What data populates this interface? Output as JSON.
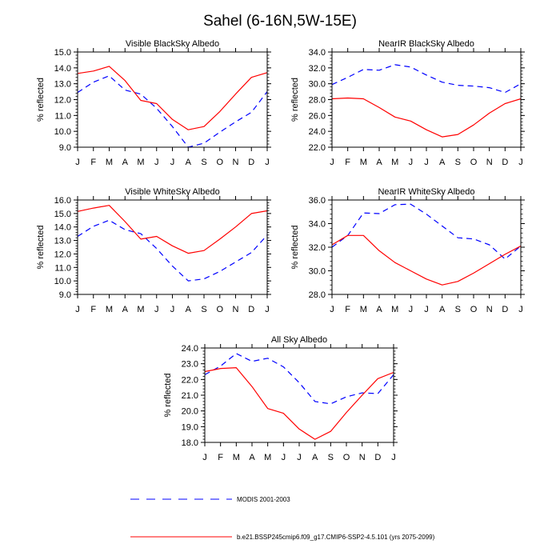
{
  "figure": {
    "title": "Sahel (6-16N,5W-15E)",
    "legend": [
      {
        "label": "MODIS 2001-2003",
        "color": "#0000ff",
        "style": "dashed"
      },
      {
        "label": "b.e21.BSSP245cmip6.f09_g17.CMIP6-SSP2-4.5.101 (yrs 2075-2099)",
        "color": "#ff0000",
        "style": "solid"
      }
    ]
  },
  "chart_data": [
    {
      "type": "line",
      "title": "Visible BlackSky Albedo",
      "ylabel": "% reflected",
      "categories": [
        "J",
        "F",
        "M",
        "A",
        "M",
        "J",
        "J",
        "A",
        "S",
        "O",
        "N",
        "D",
        "J"
      ],
      "ylim": [
        9.0,
        15.0
      ],
      "yticks": [
        "9.0",
        "10.0",
        "11.0",
        "12.0",
        "13.0",
        "14.0",
        "15.0"
      ],
      "series": [
        {
          "name": "MODIS 2001-2003",
          "color": "#0000ff",
          "style": "dashed",
          "values": [
            12.45,
            13.1,
            13.5,
            12.6,
            12.35,
            11.45,
            10.3,
            9.0,
            9.25,
            9.95,
            10.6,
            11.2,
            12.5
          ]
        },
        {
          "name": "b.e21.BSSP245cmip6.f09_g17.CMIP6-SSP2-4.5.101 (yrs 2075-2099)",
          "color": "#ff0000",
          "style": "solid",
          "values": [
            13.65,
            13.8,
            14.1,
            13.2,
            11.95,
            11.75,
            10.75,
            10.1,
            10.3,
            11.25,
            12.35,
            13.4,
            13.7
          ]
        }
      ]
    },
    {
      "type": "line",
      "title": "NearIR BlackSky Albedo",
      "ylabel": "% reflected",
      "categories": [
        "J",
        "F",
        "M",
        "A",
        "M",
        "J",
        "J",
        "A",
        "S",
        "O",
        "N",
        "D",
        "J"
      ],
      "ylim": [
        22.0,
        34.0
      ],
      "yticks": [
        "22.0",
        "24.0",
        "26.0",
        "28.0",
        "30.0",
        "32.0",
        "34.0"
      ],
      "series": [
        {
          "name": "MODIS 2001-2003",
          "color": "#0000ff",
          "style": "dashed",
          "values": [
            29.9,
            30.8,
            31.8,
            31.7,
            32.4,
            32.1,
            31.1,
            30.2,
            29.8,
            29.7,
            29.5,
            28.9,
            30.0
          ]
        },
        {
          "name": "b.e21.BSSP245cmip6.f09_g17.CMIP6-SSP2-4.5.101 (yrs 2075-2099)",
          "color": "#ff0000",
          "style": "solid",
          "values": [
            28.1,
            28.2,
            28.1,
            27.0,
            25.8,
            25.3,
            24.2,
            23.3,
            23.6,
            24.8,
            26.3,
            27.5,
            28.1
          ]
        }
      ]
    },
    {
      "type": "line",
      "title": "Visible WhiteSky Albedo",
      "ylabel": "% reflected",
      "categories": [
        "J",
        "F",
        "M",
        "A",
        "M",
        "J",
        "J",
        "A",
        "S",
        "O",
        "N",
        "D",
        "J"
      ],
      "ylim": [
        9.0,
        16.0
      ],
      "yticks": [
        "9.0",
        "10.0",
        "11.0",
        "12.0",
        "13.0",
        "14.0",
        "15.0",
        "16.0"
      ],
      "series": [
        {
          "name": "MODIS 2001-2003",
          "color": "#0000ff",
          "style": "dashed",
          "values": [
            13.3,
            14.05,
            14.5,
            13.8,
            13.5,
            12.4,
            11.1,
            10.0,
            10.15,
            10.7,
            11.4,
            12.1,
            13.4
          ]
        },
        {
          "name": "b.e21.BSSP245cmip6.f09_g17.CMIP6-SSP2-4.5.101 (yrs 2075-2099)",
          "color": "#ff0000",
          "style": "solid",
          "values": [
            15.15,
            15.4,
            15.6,
            14.4,
            13.1,
            13.3,
            12.6,
            12.05,
            12.25,
            13.1,
            14.0,
            15.0,
            15.2
          ]
        }
      ]
    },
    {
      "type": "line",
      "title": "NearIR WhiteSky Albedo",
      "ylabel": "% reflected",
      "categories": [
        "J",
        "F",
        "M",
        "A",
        "M",
        "J",
        "J",
        "A",
        "S",
        "O",
        "N",
        "D",
        "J"
      ],
      "ylim": [
        28.0,
        36.0
      ],
      "yticks": [
        "28.0",
        "30.0",
        "32.0",
        "34.0",
        "36.0"
      ],
      "series": [
        {
          "name": "MODIS 2001-2003",
          "color": "#0000ff",
          "style": "dashed",
          "values": [
            32.0,
            33.0,
            34.9,
            34.85,
            35.6,
            35.65,
            34.8,
            33.8,
            32.8,
            32.7,
            32.2,
            31.0,
            32.1
          ]
        },
        {
          "name": "b.e21.BSSP245cmip6.f09_g17.CMIP6-SSP2-4.5.101 (yrs 2075-2099)",
          "color": "#ff0000",
          "style": "solid",
          "values": [
            32.2,
            33.0,
            33.0,
            31.7,
            30.7,
            30.0,
            29.3,
            28.8,
            29.1,
            29.8,
            30.6,
            31.4,
            32.1
          ]
        }
      ]
    },
    {
      "type": "line",
      "title": "All Sky Albedo",
      "ylabel": "% reflected",
      "categories": [
        "J",
        "F",
        "M",
        "A",
        "M",
        "J",
        "J",
        "A",
        "S",
        "O",
        "N",
        "D",
        "J"
      ],
      "ylim": [
        18.0,
        24.0
      ],
      "yticks": [
        "18.0",
        "19.0",
        "20.0",
        "21.0",
        "22.0",
        "23.0",
        "24.0"
      ],
      "series": [
        {
          "name": "MODIS 2001-2003",
          "color": "#0000ff",
          "style": "dashed",
          "values": [
            22.3,
            22.85,
            23.65,
            23.15,
            23.35,
            22.8,
            21.8,
            20.6,
            20.45,
            20.9,
            21.15,
            21.1,
            22.3
          ]
        },
        {
          "name": "b.e21.BSSP245cmip6.f09_g17.CMIP6-SSP2-4.5.101 (yrs 2075-2099)",
          "color": "#ff0000",
          "style": "solid",
          "values": [
            22.5,
            22.7,
            22.75,
            21.55,
            20.15,
            19.85,
            18.85,
            18.2,
            18.7,
            19.9,
            21.0,
            22.05,
            22.45
          ]
        }
      ]
    }
  ]
}
